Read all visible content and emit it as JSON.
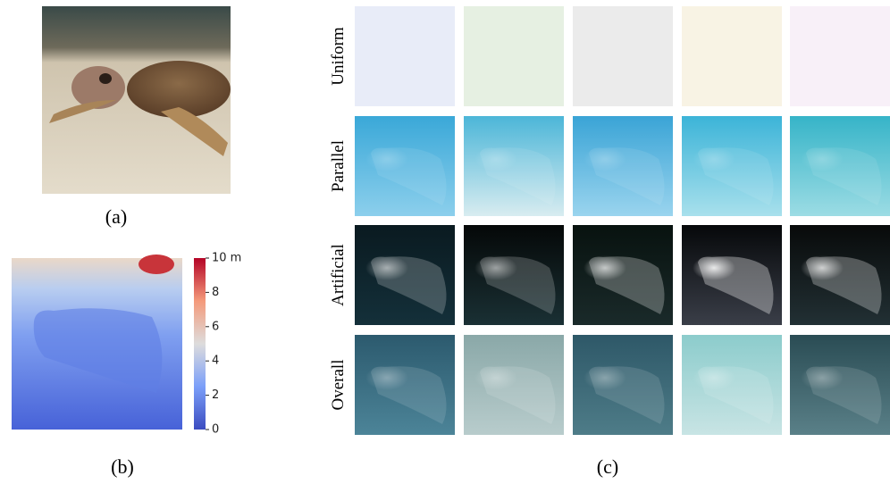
{
  "panels": {
    "a": {
      "label": "(a)"
    },
    "b": {
      "label": "(b)",
      "colorbar": {
        "ticks": [
          0,
          2,
          4,
          6,
          8,
          {
            "value": 10,
            "label": "10 m"
          }
        ]
      }
    },
    "c": {
      "label": "(c)",
      "rows": [
        "Uniform",
        "Parallel",
        "Artificial",
        "Overall"
      ]
    }
  }
}
